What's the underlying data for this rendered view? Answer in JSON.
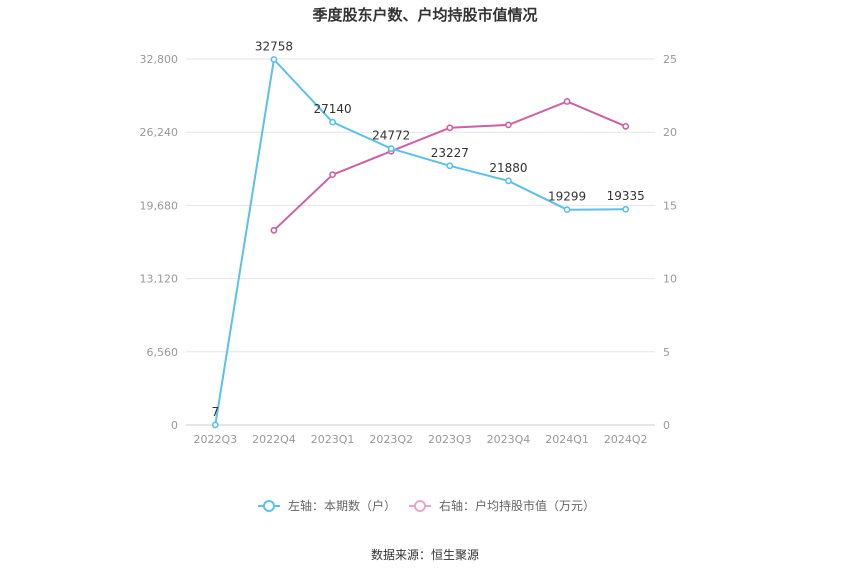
{
  "chart_data": {
    "type": "line",
    "title": "季度股东户数、户均持股市值情况",
    "categories": [
      "2022Q3",
      "2022Q4",
      "2023Q1",
      "2023Q2",
      "2023Q3",
      "2023Q4",
      "2024Q1",
      "2024Q2"
    ],
    "left_axis": {
      "ticks": [
        "0",
        "6,560",
        "13,120",
        "19,680",
        "26,240",
        "32,800"
      ],
      "ylim": [
        0,
        32800
      ]
    },
    "right_axis": {
      "ticks": [
        "0",
        "5",
        "10",
        "15",
        "20",
        "25"
      ],
      "ylim": [
        0,
        25
      ]
    },
    "series": [
      {
        "name": "左轴：本期数（户）",
        "axis": "left",
        "color": "#5bc0eb",
        "values": [
          7,
          32758,
          27140,
          24772,
          23227,
          21880,
          19299,
          19335
        ],
        "labels": [
          "7",
          "32758",
          "27140",
          "24772",
          "23227",
          "21880",
          "19299",
          "19335"
        ]
      },
      {
        "name": "右轴：户均持股市值（万元）",
        "axis": "right",
        "color": "#d05fa6",
        "legend_color": "#e8a6cf",
        "values": [
          null,
          13.3,
          17.1,
          18.7,
          20.3,
          20.5,
          22.1,
          20.4
        ]
      }
    ],
    "grid": true,
    "legend": "bottom-center"
  },
  "source": "数据来源：恒生聚源"
}
